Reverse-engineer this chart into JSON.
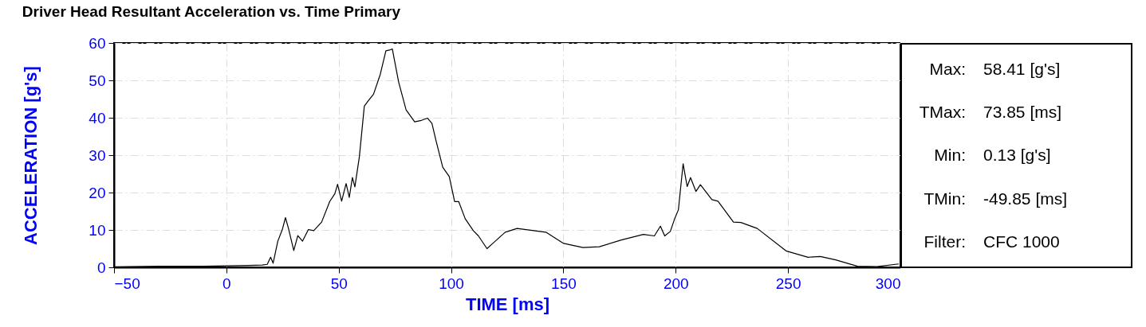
{
  "chart_data": {
    "type": "line",
    "title": "Driver Head Resultant Acceleration vs. Time Primary",
    "xlabel": "TIME [ms]",
    "ylabel": "ACCELERATION [g's]",
    "x": [
      -49.85,
      -30,
      -10,
      10,
      16,
      18.2,
      19.7,
      20.8,
      22.9,
      24.9,
      26.3,
      27.6,
      30.0,
      31.8,
      33.9,
      36.5,
      38.9,
      42.4,
      46.0,
      48.3,
      49.5,
      51.3,
      53.3,
      54.7,
      56.1,
      57.2,
      59.2,
      61.4,
      63.1,
      65.5,
      68.5,
      71.0,
      72.6,
      73.85,
      76.7,
      80.0,
      83.8,
      86.8,
      89.5,
      91.5,
      93.3,
      96.3,
      99.2,
      101.6,
      103.4,
      106.3,
      109.9,
      112.2,
      116.0,
      118.2,
      124.1,
      129.4,
      139.5,
      142.2,
      150.1,
      158.7,
      166.0,
      175.8,
      185.6,
      190.5,
      193.2,
      195.1,
      197.6,
      199.6,
      201.2,
      203.3,
      205.1,
      206.6,
      209.0,
      211.0,
      216.1,
      218.8,
      225.7,
      229.0,
      236.3,
      249.1,
      258.9,
      264.4,
      271.2,
      280.9,
      289.5,
      299.3
    ],
    "series": [
      {
        "color": "#000000",
        "values": [
          0.13,
          0.3,
          0.3,
          0.5,
          0.6,
          0.8,
          2.7,
          1.1,
          7.0,
          10.1,
          13.3,
          10.5,
          4.5,
          8.5,
          7.0,
          10.1,
          9.8,
          12.1,
          17.6,
          19.7,
          22.2,
          17.7,
          22.4,
          18.7,
          24.0,
          21.5,
          29.6,
          43.1,
          44.5,
          46.3,
          51.6,
          57.9,
          58.1,
          58.41,
          49.5,
          42.1,
          38.9,
          39.3,
          39.9,
          38.5,
          33.9,
          26.8,
          24.3,
          17.6,
          17.6,
          13.0,
          9.8,
          8.4,
          5.0,
          6.2,
          9.4,
          10.4,
          9.6,
          9.4,
          6.4,
          5.3,
          5.5,
          7.3,
          8.8,
          8.4,
          11.0,
          8.4,
          9.6,
          13.1,
          15.4,
          27.7,
          21.6,
          24.0,
          20.3,
          22.1,
          18.1,
          17.7,
          12.1,
          12.0,
          10.4,
          4.4,
          2.7,
          2.9,
          2.0,
          0.3,
          0.2,
          0.9
        ]
      }
    ],
    "xlim": [
      -50,
      300
    ],
    "xticks": [
      -50,
      0,
      50,
      100,
      150,
      200,
      250,
      300
    ],
    "ylim": [
      0,
      60
    ],
    "yticks": [
      0,
      10,
      20,
      30,
      40,
      50,
      60
    ],
    "grid": true,
    "annotations": [
      "Max: 58.41 [g's]",
      "TMax: 73.85 [ms]",
      "Min: 0.13 [g's]",
      "TMin: -49.85 [ms]",
      "Filter: CFC 1000"
    ]
  }
}
